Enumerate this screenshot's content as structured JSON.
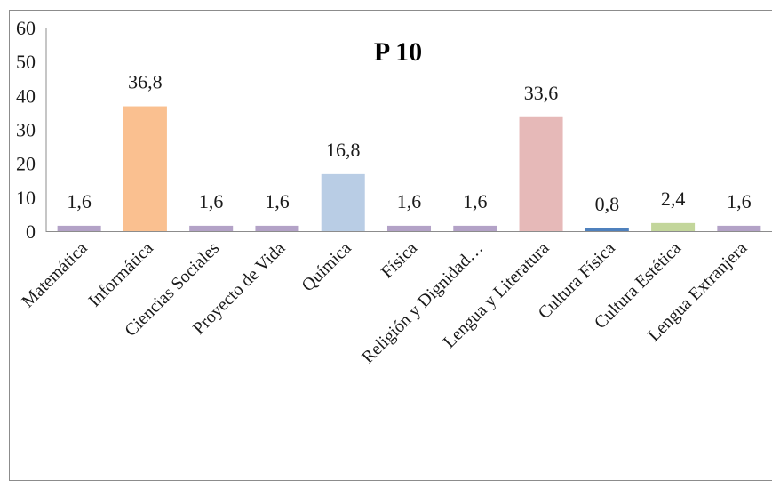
{
  "chart_data": {
    "type": "bar",
    "title": "P 10",
    "xlabel": "",
    "ylabel": "",
    "ylim": [
      0,
      60
    ],
    "yticks": [
      "0",
      "10",
      "20",
      "30",
      "40",
      "50",
      "60"
    ],
    "grid": false,
    "legend": "none",
    "categories": [
      "Matemática",
      "Informática",
      "Ciencias Sociales",
      "Proyecto de Vida",
      "Química",
      "Física",
      "Religión y Dignidad…",
      "Lengua y Literatura",
      "Cultura Física",
      "Cultura Estética",
      "Lengua Extranjera"
    ],
    "values": [
      1.6,
      36.8,
      1.6,
      1.6,
      16.8,
      1.6,
      1.6,
      33.6,
      0.8,
      2.4,
      1.6
    ],
    "value_labels": [
      "1,6",
      "36,8",
      "1,6",
      "1,6",
      "16,8",
      "1,6",
      "1,6",
      "33,6",
      "0,8",
      "2,4",
      "1,6"
    ],
    "colors": [
      "#b3a2c7",
      "#fac090",
      "#b3a2c7",
      "#b3a2c7",
      "#b9cde5",
      "#b3a2c7",
      "#b3a2c7",
      "#e6b9b8",
      "#4f81bd",
      "#c3d69b",
      "#b3a2c7"
    ]
  }
}
